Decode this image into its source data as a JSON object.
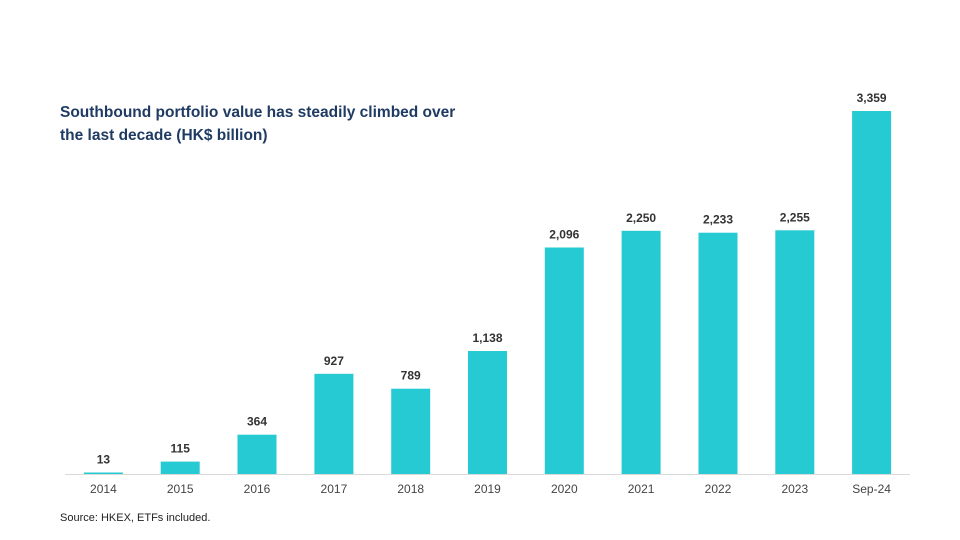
{
  "colors": {
    "bar": "#26cad3",
    "title": "#1f3b63",
    "axis": "#d9d9d9"
  },
  "chart_data": {
    "type": "bar",
    "title": "Southbound portfolio value has steadily climbed over the last decade (HK$ billion)",
    "categories": [
      "2014",
      "2015",
      "2016",
      "2017",
      "2018",
      "2019",
      "2020",
      "2021",
      "2022",
      "2023",
      "Sep-24"
    ],
    "values": [
      13,
      115,
      364,
      927,
      789,
      1138,
      2096,
      2250,
      2233,
      2255,
      3359
    ],
    "data_labels": [
      "13",
      "115",
      "364",
      "927",
      "789",
      "1,138",
      "2,096",
      "2,250",
      "2,233",
      "2,255",
      "3,359"
    ],
    "xlabel": "",
    "ylabel": "",
    "ylim": [
      0,
      3359
    ],
    "y_axis_visible": false,
    "grid": false,
    "legend": "none"
  },
  "source": "Source: HKEX, ETFs included."
}
